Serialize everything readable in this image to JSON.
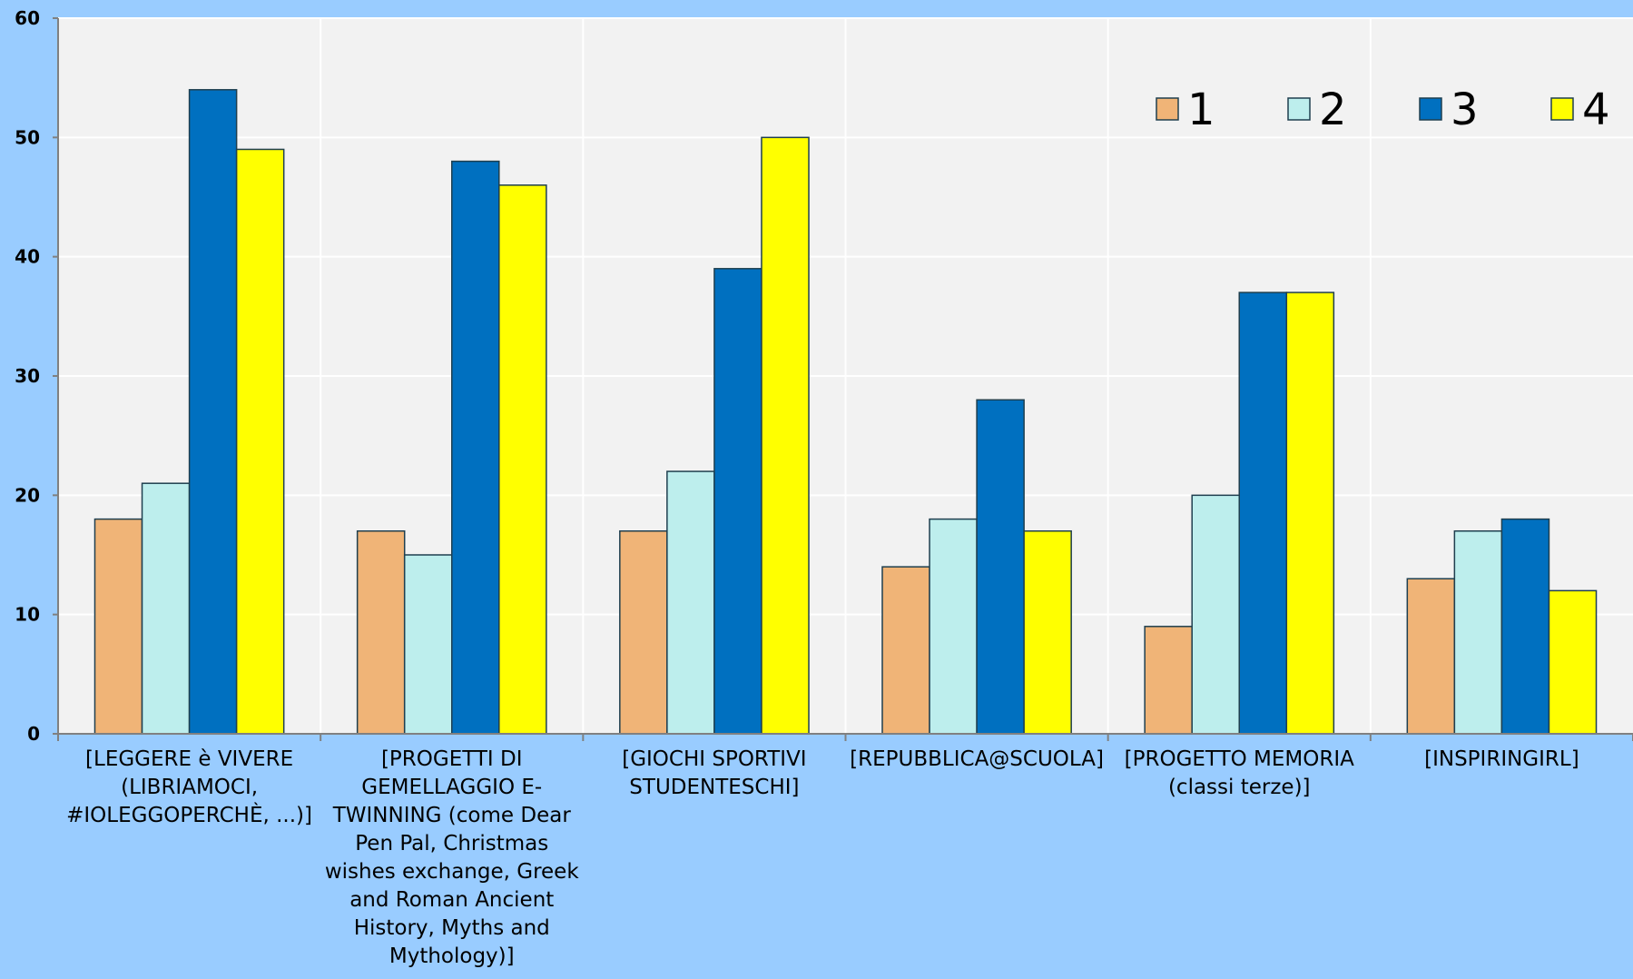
{
  "chart_data": {
    "type": "bar",
    "title": "",
    "xlabel": "",
    "ylabel": "",
    "ylim": [
      0,
      60
    ],
    "yticks": [
      "0",
      "10",
      "20",
      "30",
      "40",
      "50",
      "60"
    ],
    "grid": true,
    "legend_position": "top-right",
    "categories": [
      "[LEGGERE è VIVERE (LIBRIAMOCI, #IOLEGGOPERCHÈ, ...)]",
      "[PROGETTI DI GEMELLAGGIO E-TWINNING (come Dear Pen Pal, Christmas wishes exchange, Greek and Roman Ancient History, Myths and Mythology)]",
      "[GIOCHI SPORTIVI STUDENTESCHI]",
      "[REPUBBLICA@SCUOLA]",
      "[PROGETTO MEMORIA (classi terze)]",
      "[INSPIRINGIRL]"
    ],
    "category_lines": [
      [
        "[LEGGERE è VIVERE",
        "(LIBRIAMOCI,",
        "#IOLEGGOPERCHÈ, ...)]"
      ],
      [
        "[PROGETTI DI",
        "GEMELLAGGIO E-",
        "TWINNING (come Dear",
        "Pen Pal, Christmas",
        "wishes exchange, Greek",
        "and Roman Ancient",
        "History, Myths and",
        "Mythology)]"
      ],
      [
        "[GIOCHI SPORTIVI",
        "STUDENTESCHI]"
      ],
      [
        "[REPUBBLICA@SCUOLA]"
      ],
      [
        "[PROGETTO MEMORIA",
        "(classi terze)]"
      ],
      [
        "[INSPIRINGIRL]"
      ]
    ],
    "series": [
      {
        "name": "1",
        "color": "#f0b477",
        "values": [
          18,
          17,
          17,
          14,
          9,
          13
        ]
      },
      {
        "name": "2",
        "color": "#bdeeed",
        "values": [
          21,
          15,
          22,
          18,
          20,
          17
        ]
      },
      {
        "name": "3",
        "color": "#0070c0",
        "values": [
          54,
          48,
          39,
          28,
          37,
          18
        ]
      },
      {
        "name": "4",
        "color": "#ffff00",
        "values": [
          49,
          46,
          50,
          17,
          37,
          12
        ]
      }
    ],
    "colors": {
      "background": "#99ccff",
      "plot_area": "#f2f2f2",
      "gridline": "#ffffff",
      "axis": "#808080",
      "bar_border": "#1f3f4f"
    }
  }
}
